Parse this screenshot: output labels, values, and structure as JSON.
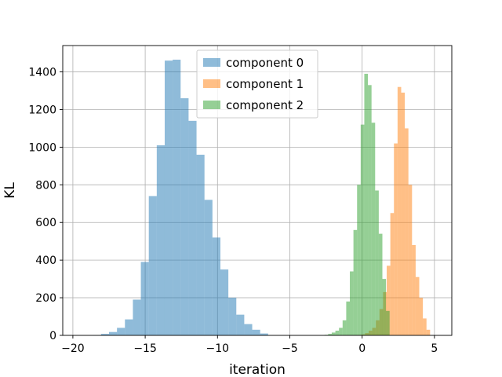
{
  "chart_data": {
    "type": "histogram",
    "title": "",
    "xlabel": "iteration",
    "ylabel": "KL",
    "xlim": [
      -20.7,
      6.2
    ],
    "ylim": [
      0,
      1540
    ],
    "xticks": [
      -20,
      -15,
      -10,
      -5,
      0,
      5
    ],
    "xtick_labels": [
      "−20",
      "−15",
      "−10",
      "−5",
      "0",
      "5"
    ],
    "yticks": [
      0,
      200,
      400,
      600,
      800,
      1000,
      1200,
      1400
    ],
    "ytick_labels": [
      "0",
      "200",
      "400",
      "600",
      "800",
      "1000",
      "1200",
      "1400"
    ],
    "grid": true,
    "legend_position": "upper-center",
    "series": [
      {
        "name": "component 0",
        "color": "#1f77b4",
        "alpha": 0.5,
        "bin_edges": [
          -18.6,
          -18.05,
          -17.5,
          -16.95,
          -16.4,
          -15.85,
          -15.3,
          -14.75,
          -14.2,
          -13.65,
          -13.1,
          -12.55,
          -12.0,
          -11.45,
          -10.9,
          -10.35,
          -9.8,
          -9.25,
          -8.7,
          -8.15,
          -7.6,
          -7.05,
          -6.5
        ],
        "counts": [
          2,
          8,
          18,
          40,
          85,
          190,
          390,
          740,
          1010,
          1460,
          1465,
          1260,
          1140,
          960,
          720,
          520,
          350,
          200,
          110,
          60,
          30,
          10
        ]
      },
      {
        "name": "component 1",
        "color": "#ff7f0e",
        "alpha": 0.5,
        "bin_edges": [
          -0.3,
          -0.05,
          0.2,
          0.45,
          0.7,
          0.95,
          1.2,
          1.45,
          1.7,
          1.95,
          2.2,
          2.45,
          2.7,
          2.95,
          3.2,
          3.45,
          3.7,
          3.95,
          4.2,
          4.45,
          4.7
        ],
        "counts": [
          2,
          5,
          12,
          25,
          40,
          80,
          140,
          230,
          370,
          650,
          1020,
          1320,
          1290,
          1100,
          800,
          480,
          310,
          200,
          90,
          30
        ]
      },
      {
        "name": "component 2",
        "color": "#2ca02c",
        "alpha": 0.5,
        "bin_edges": [
          -2.6,
          -2.35,
          -2.1,
          -1.85,
          -1.6,
          -1.35,
          -1.1,
          -0.85,
          -0.6,
          -0.35,
          -0.1,
          0.15,
          0.4,
          0.65,
          0.9,
          1.15,
          1.4,
          1.65,
          1.9
        ],
        "counts": [
          3,
          8,
          15,
          25,
          40,
          80,
          180,
          340,
          560,
          800,
          1120,
          1390,
          1330,
          1130,
          770,
          540,
          300,
          130
        ]
      }
    ]
  }
}
